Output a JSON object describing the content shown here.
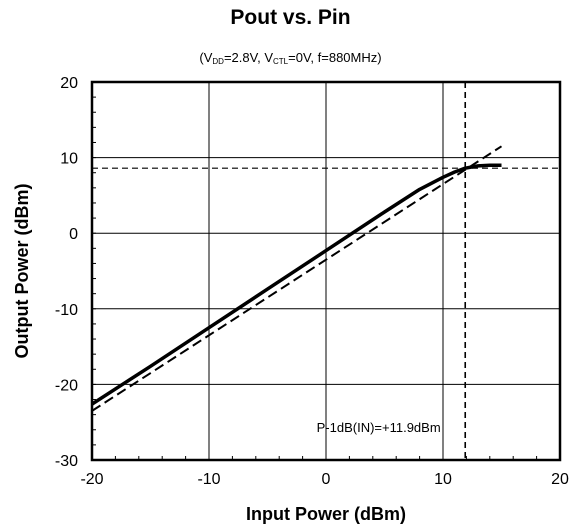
{
  "chart_data": {
    "type": "line",
    "title": "Pout vs. Pin",
    "subtitle": {
      "p1": "(V",
      "s1": "DD",
      "p2": "=2.8V, V",
      "s2": "CTL",
      "p3": "=0V, f=880MHz)"
    },
    "xlabel": "Input Power (dBm)",
    "ylabel": "Output Power (dBm)",
    "xlim": [
      -20,
      20
    ],
    "ylim": [
      -30,
      20
    ],
    "xticks": [
      -20,
      -10,
      0,
      10,
      20
    ],
    "yticks": [
      -30,
      -20,
      -10,
      0,
      10,
      20
    ],
    "grid": true,
    "series": [
      {
        "style": "solid",
        "x": [
          -20,
          -15,
          -10,
          -5,
          0,
          5,
          8,
          10,
          11,
          11.9,
          13,
          14,
          15
        ],
        "y": [
          -22.6,
          -17.6,
          -12.5,
          -7.4,
          -2.3,
          2.8,
          5.8,
          7.4,
          8.1,
          8.6,
          8.9,
          9.0,
          9.0
        ]
      },
      {
        "style": "dashed",
        "x": [
          -20,
          15
        ],
        "y": [
          -23.5,
          11.5
        ]
      }
    ],
    "reference_lines": {
      "vertical_x": 11.9,
      "horizontal_y": 8.6
    },
    "annotation": "P-1dB(IN)=+11.9dBm"
  }
}
